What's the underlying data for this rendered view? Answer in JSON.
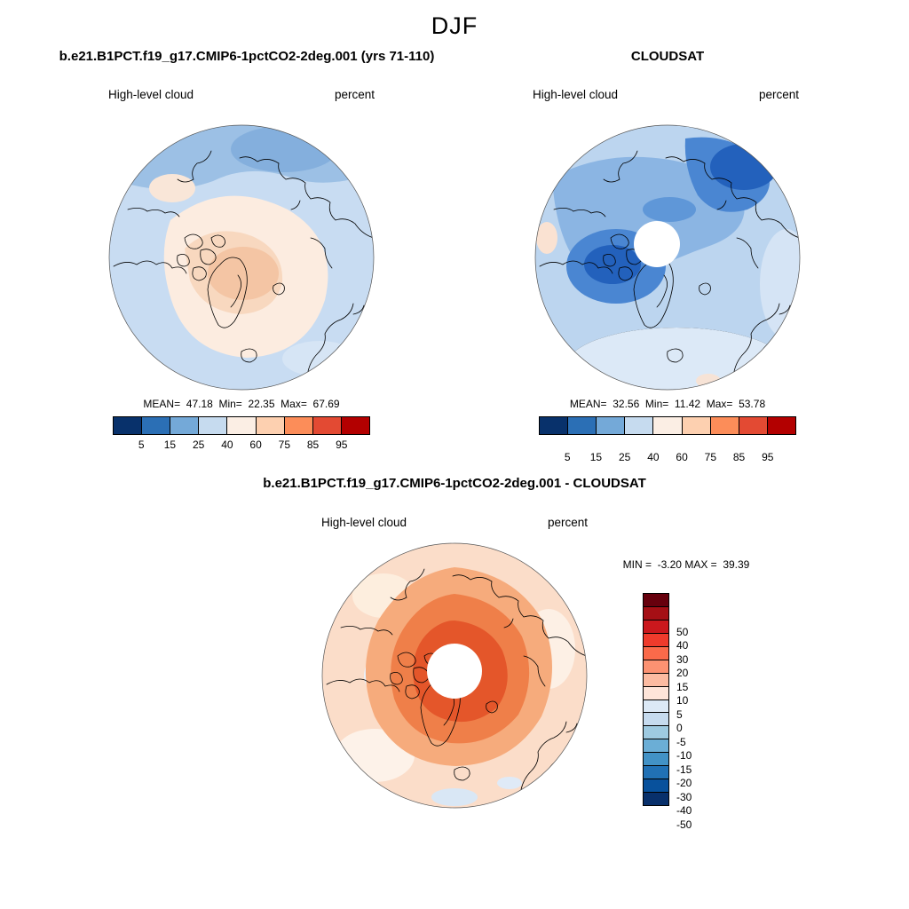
{
  "season": "DJF",
  "panels": {
    "model": {
      "title": "b.e21.B1PCT.f19_g17.CMIP6-1pctCO2-2deg.001 (yrs 71-110)",
      "field_label": "High-level cloud",
      "units_label": "percent",
      "stats": "MEAN=  47.18  Min=  22.35  Max=  67.69"
    },
    "obs": {
      "title": "CLOUDSAT",
      "field_label": "High-level cloud",
      "units_label": "percent",
      "stats": "MEAN=  32.56  Min=  11.42  Max=  53.78"
    },
    "diff": {
      "title": "b.e21.B1PCT.f19_g17.CMIP6-1pctCO2-2deg.001 - CLOUDSAT",
      "field_label": "High-level cloud",
      "units_label": "percent",
      "stats": "MIN =  -3.20 MAX =  39.39"
    }
  },
  "colorbar_seq": {
    "ticks": [
      "5",
      "15",
      "25",
      "40",
      "60",
      "75",
      "85",
      "95"
    ],
    "colors": [
      "#08316b",
      "#2b6fb5",
      "#74a9d8",
      "#c6dbef",
      "#fbeee4",
      "#fdd0b0",
      "#fc8d59",
      "#e34a33",
      "#b30000"
    ]
  },
  "colorbar_diff": {
    "ticks": [
      "50",
      "40",
      "30",
      "20",
      "15",
      "10",
      "5",
      "0",
      "-5",
      "-10",
      "-15",
      "-20",
      "-30",
      "-40",
      "-50"
    ],
    "colors": [
      "#67000d",
      "#a50f15",
      "#cb181d",
      "#ef3b2c",
      "#fb6a4a",
      "#fc9272",
      "#fcbba1",
      "#fee5d9",
      "#dce9f6",
      "#c6dbef",
      "#9ecae1",
      "#6baed6",
      "#4292c6",
      "#2171b5",
      "#08519c",
      "#08306b"
    ]
  },
  "chart_data": [
    {
      "type": "heatmap",
      "subtype": "north-polar-stereographic-filled-contour-map",
      "season": "DJF",
      "title": "b.e21.B1PCT.f19_g17.CMIP6-1pctCO2-2deg.001 (yrs 71-110)",
      "variable": "High-level cloud",
      "units": "percent",
      "stats": {
        "mean": 47.18,
        "min": 22.35,
        "max": 67.69
      },
      "contour_levels": [
        5,
        15,
        25,
        40,
        60,
        75,
        85,
        95
      ],
      "palette_low_to_high": [
        "#08316b",
        "#2b6fb5",
        "#74a9d8",
        "#c6dbef",
        "#fbeee4",
        "#fdd0b0",
        "#fc8d59",
        "#e34a33",
        "#b30000"
      ],
      "legend_position": "bottom",
      "pole_hole": false,
      "description": "Arctic high-level cloud percent from model: light blue (15-40%) around map edge and top, pale peach (40-75%) over central Arctic with maximum band near Greenland/Canadian Archipelago"
    },
    {
      "type": "heatmap",
      "subtype": "north-polar-stereographic-filled-contour-map",
      "season": "DJF",
      "title": "CLOUDSAT",
      "variable": "High-level cloud",
      "units": "percent",
      "stats": {
        "mean": 32.56,
        "min": 11.42,
        "max": 53.78
      },
      "contour_levels": [
        5,
        15,
        25,
        40,
        60,
        75,
        85,
        95
      ],
      "palette_low_to_high": [
        "#08316b",
        "#2b6fb5",
        "#74a9d8",
        "#c6dbef",
        "#fbeee4",
        "#fdd0b0",
        "#fc8d59",
        "#e34a33",
        "#b30000"
      ],
      "legend_position": "bottom",
      "pole_hole": true,
      "description": "CLOUDSAT observed high-level cloud percent: mostly blues (5-40%), darkest blue minima northeast of pole and over Canadian Archipelago, white data gap at pole"
    },
    {
      "type": "heatmap",
      "subtype": "north-polar-stereographic-filled-contour-map",
      "season": "DJF",
      "title": "b.e21.B1PCT.f19_g17.CMIP6-1pctCO2-2deg.001 - CLOUDSAT",
      "variable": "High-level cloud",
      "units": "percent",
      "stats": {
        "min": -3.2,
        "max": 39.39
      },
      "contour_levels": [
        -50,
        -40,
        -30,
        -20,
        -15,
        -10,
        -5,
        0,
        5,
        10,
        15,
        20,
        30,
        40,
        50
      ],
      "palette_high_to_low": [
        "#67000d",
        "#a50f15",
        "#cb181d",
        "#ef3b2c",
        "#fb6a4a",
        "#fc9272",
        "#fcbba1",
        "#fee5d9",
        "#dce9f6",
        "#c6dbef",
        "#9ecae1",
        "#6baed6",
        "#4292c6",
        "#2171b5",
        "#08519c",
        "#08306b"
      ],
      "legend_position": "right",
      "pole_hole": true,
      "description": "Model minus CLOUDSAT difference: positive bias (orange/red, +10 to +30%) over most of the Arctic, strongest ring around pole, small near-zero/negative patches at map edge"
    }
  ]
}
